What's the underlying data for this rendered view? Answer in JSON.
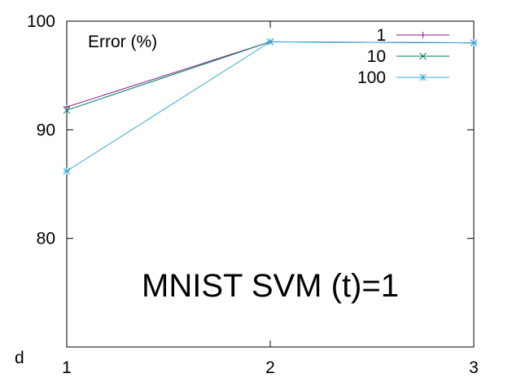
{
  "chart_data": {
    "type": "line",
    "ylabel": "Error (%)",
    "xlabel": "d",
    "annotation": "MNIST SVM (t)=1",
    "x": [
      1,
      2,
      3
    ],
    "xlim": [
      1,
      3
    ],
    "ylim": [
      70,
      100
    ],
    "x_ticks": [
      "1",
      "2",
      "3"
    ],
    "y_ticks": [
      80,
      90,
      100
    ],
    "y_tick_labels": [
      "80",
      "90",
      "100"
    ],
    "legend_position": "top-right",
    "grid": false,
    "series": [
      {
        "name": "1",
        "values": [
          92.1,
          98.1,
          98.0
        ],
        "color": "#8b1a89",
        "marker": "plus"
      },
      {
        "name": "10",
        "values": [
          91.8,
          98.1,
          98.0
        ],
        "color": "#007a5c",
        "marker": "cross"
      },
      {
        "name": "100",
        "values": [
          86.2,
          98.1,
          98.0
        ],
        "color": "#33a7d9",
        "marker": "star"
      }
    ]
  }
}
